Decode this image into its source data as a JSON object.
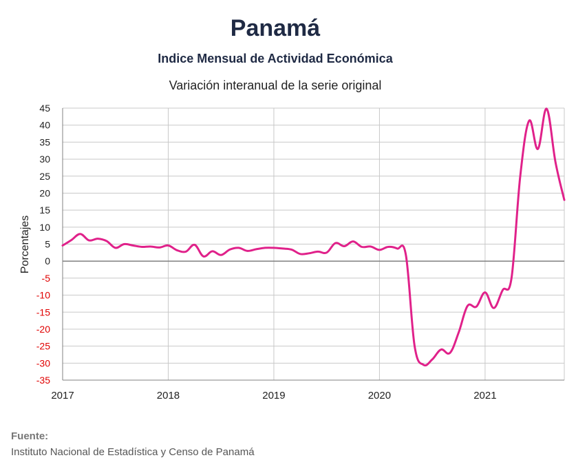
{
  "chart_data": {
    "type": "line",
    "title": "Panamá",
    "subtitle": "Indice Mensual de  Actividad Económica",
    "subtitle2": "Variación interanual de la serie original",
    "ylabel": "Porcentajes",
    "ylim": [
      -35,
      45
    ],
    "yticks": [
      45,
      40,
      35,
      30,
      25,
      20,
      15,
      10,
      5,
      0,
      -5,
      -10,
      -15,
      -20,
      -25,
      -30,
      -35
    ],
    "xlim": [
      2017.0,
      2021.75
    ],
    "xticks": [
      "2017",
      "2018",
      "2019",
      "2020",
      "2021"
    ],
    "grid": true,
    "line_color": "#e0218a",
    "negative_tick_color": "#e00000",
    "series": [
      {
        "x": [
          2017.0,
          2017.083,
          2017.167,
          2017.25,
          2017.333,
          2017.417,
          2017.5,
          2017.583,
          2017.667,
          2017.75,
          2017.833,
          2017.917,
          2018.0,
          2018.083,
          2018.167,
          2018.25,
          2018.333,
          2018.417,
          2018.5,
          2018.583,
          2018.667,
          2018.75,
          2018.833,
          2018.917,
          2019.0,
          2019.083,
          2019.167,
          2019.25,
          2019.333,
          2019.417,
          2019.5,
          2019.583,
          2019.667,
          2019.75,
          2019.833,
          2019.917,
          2020.0,
          2020.083,
          2020.167,
          2020.25,
          2020.333,
          2020.417,
          2020.5,
          2020.583,
          2020.667,
          2020.75,
          2020.833,
          2020.917,
          2021.0,
          2021.083,
          2021.167,
          2021.25,
          2021.333,
          2021.417,
          2021.5,
          2021.583,
          2021.667,
          2021.75
        ],
        "values": [
          4.6,
          6.2,
          8.0,
          6.1,
          6.6,
          5.9,
          3.9,
          5.0,
          4.6,
          4.2,
          4.3,
          4.0,
          4.6,
          3.2,
          2.8,
          4.8,
          1.4,
          2.9,
          1.8,
          3.4,
          3.9,
          3.0,
          3.5,
          3.9,
          3.9,
          3.7,
          3.4,
          2.1,
          2.3,
          2.8,
          2.5,
          5.3,
          4.4,
          5.8,
          4.2,
          4.3,
          3.3,
          4.2,
          3.7,
          1.8,
          -25.0,
          -30.5,
          -28.9,
          -26.0,
          -27.0,
          -21.0,
          -13.2,
          -13.4,
          -9.2,
          -13.8,
          -8.5,
          -5.0,
          25.0,
          41.3,
          33.0,
          44.8,
          29.0,
          18.0
        ]
      }
    ],
    "source_label": "Fuente:",
    "source": "Instituto Nacional de Estadística y Censo de Panamá"
  }
}
